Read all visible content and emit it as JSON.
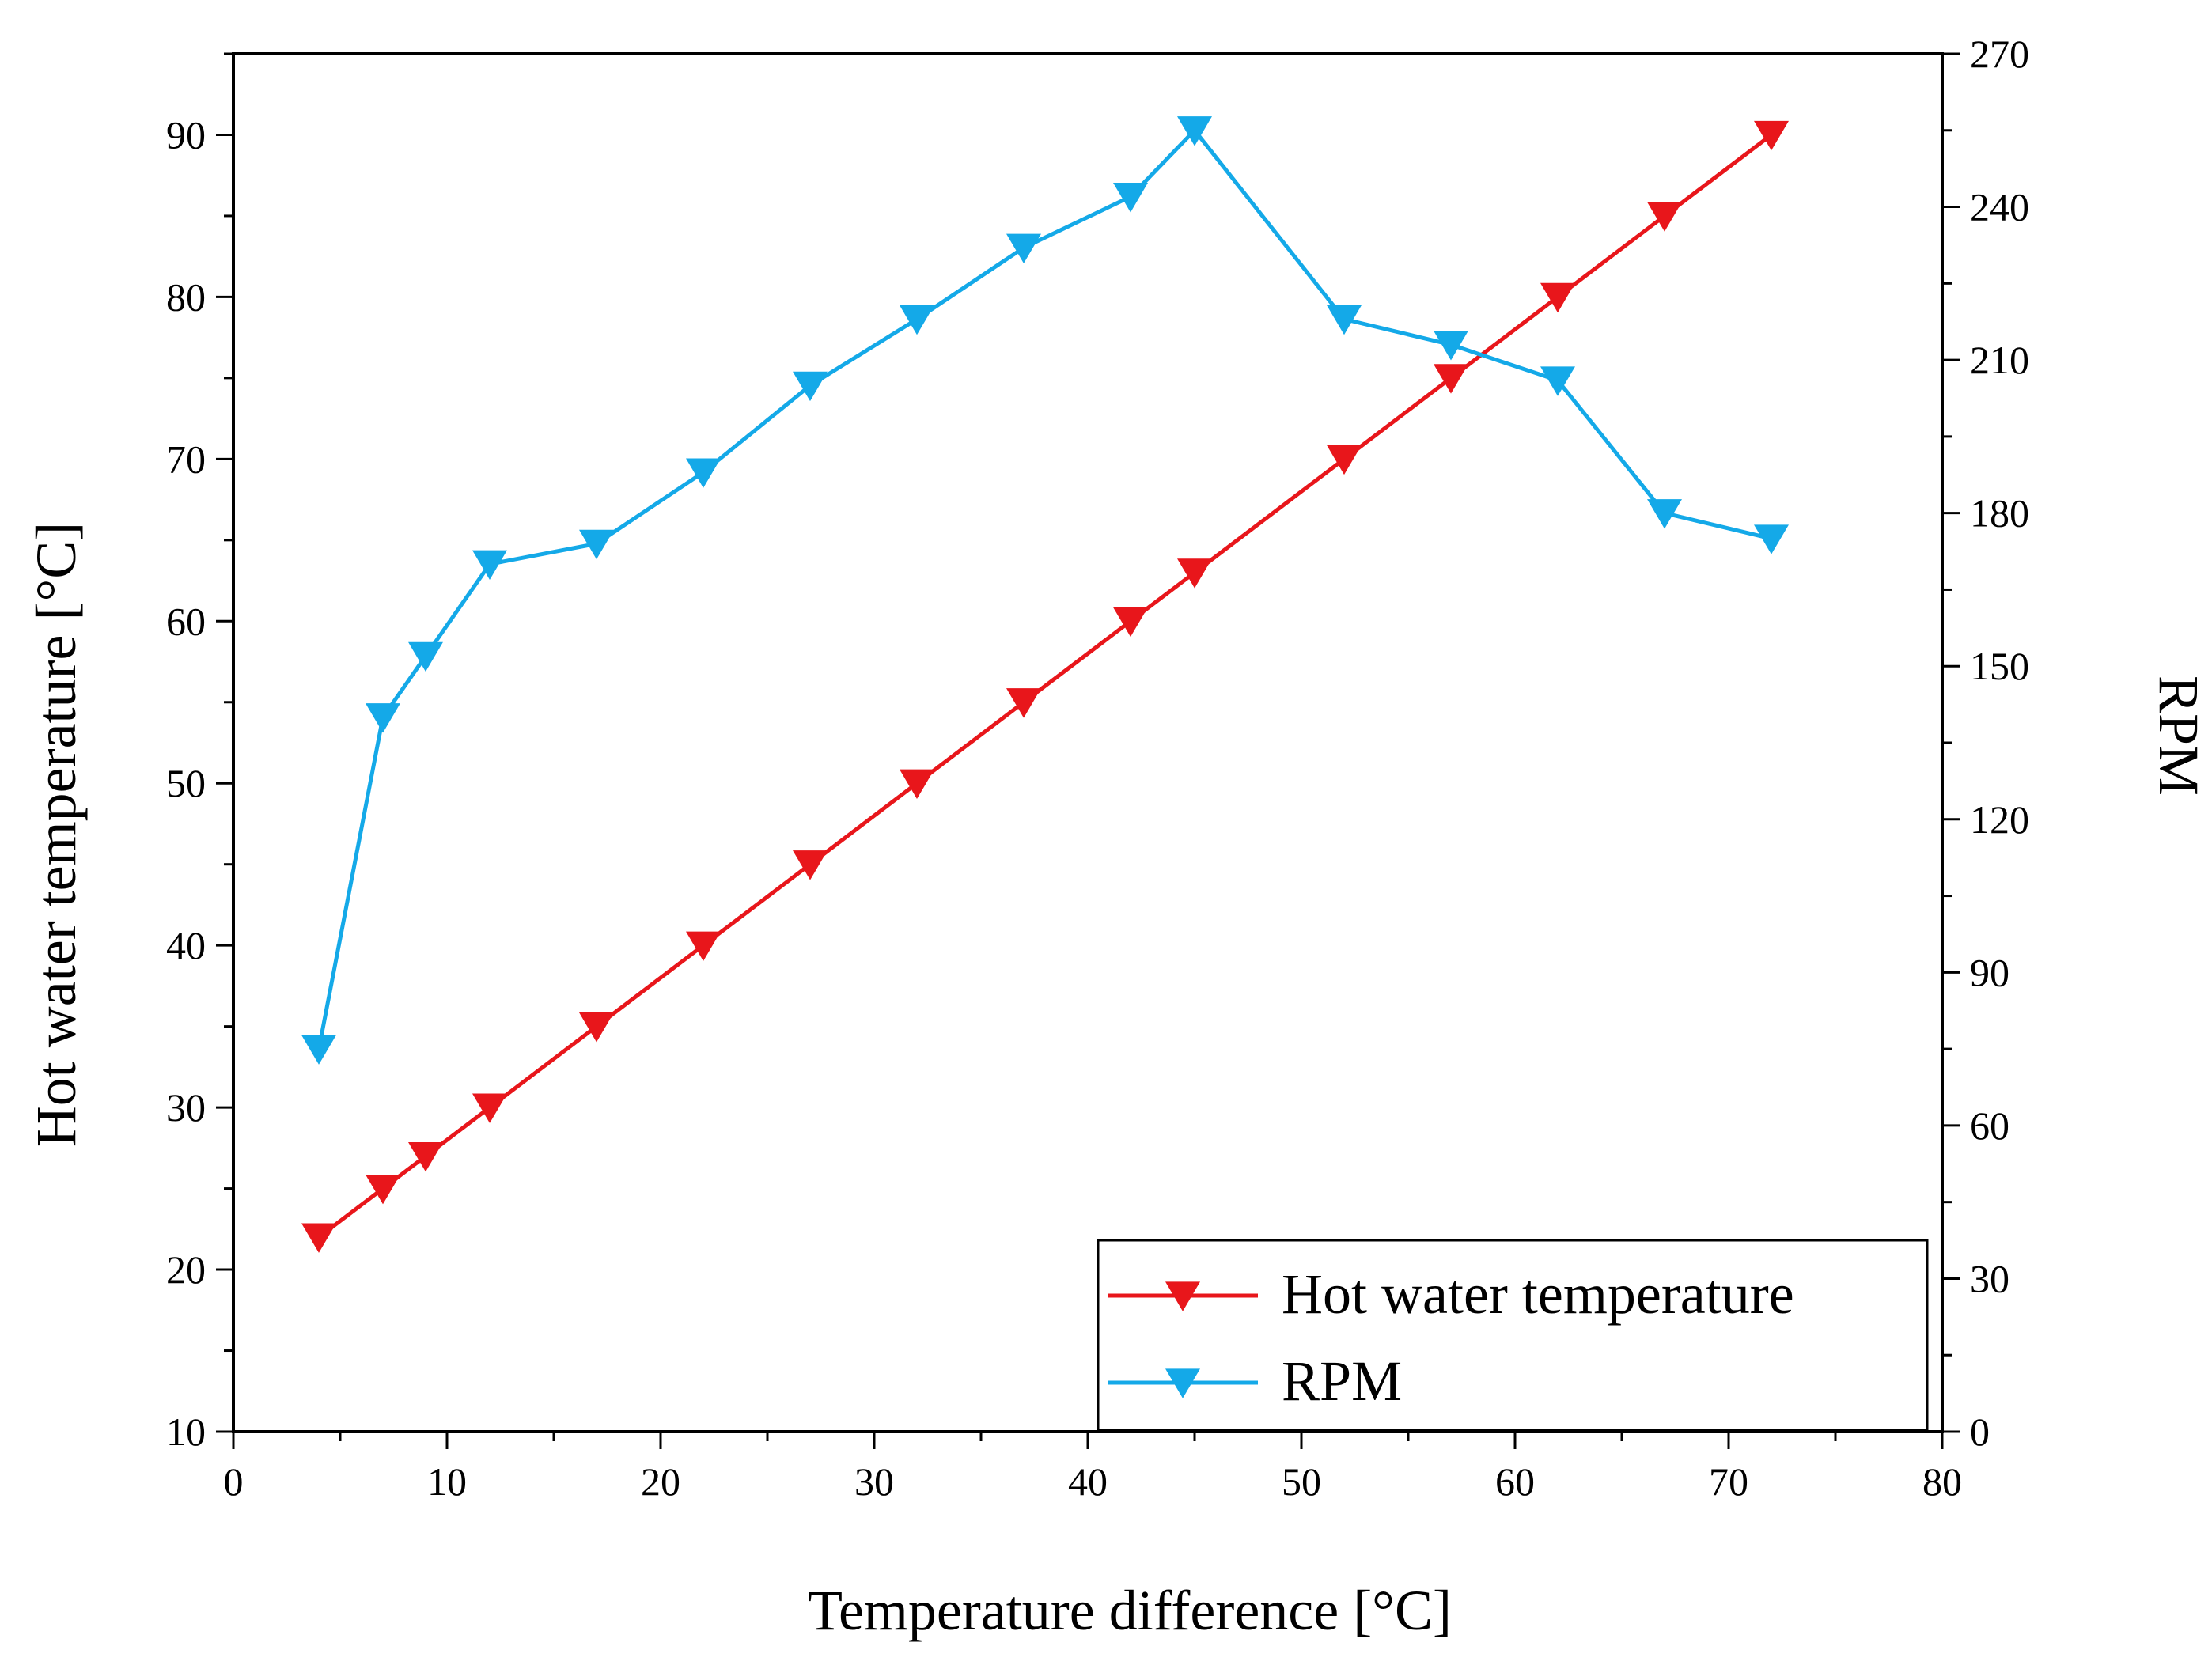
{
  "chart_data": {
    "type": "line",
    "xlabel": "Temperature difference [°C]",
    "ylabel_left": "Hot water temperature [°C]",
    "ylabel_right": "RPM",
    "xlim": [
      0,
      80
    ],
    "ylim_left": [
      10,
      95
    ],
    "ylim_right": [
      0,
      270
    ],
    "x_ticks": [
      "0",
      "10",
      "20",
      "30",
      "40",
      "50",
      "60",
      "70",
      "80"
    ],
    "y_left_ticks": [
      "10",
      "20",
      "30",
      "40",
      "50",
      "60",
      "70",
      "80",
      "90"
    ],
    "y_right_ticks": [
      "0",
      "30",
      "60",
      "90",
      "120",
      "150",
      "180",
      "210",
      "240",
      "270"
    ],
    "legend_position": "bottom-right",
    "series": [
      {
        "name": "Hot water temperature",
        "axis": "left",
        "color": "#e8161b",
        "marker": "triangle-down",
        "x": [
          4,
          7,
          9,
          12,
          17,
          22,
          27,
          32,
          37,
          42,
          45,
          52,
          57,
          62,
          67,
          72
        ],
        "y": [
          22,
          25,
          27,
          30,
          35,
          40,
          45,
          50,
          55,
          60,
          63,
          70,
          75,
          80,
          85,
          90
        ]
      },
      {
        "name": "RPM",
        "axis": "right",
        "color": "#14a9e8",
        "marker": "triangle-down",
        "x": [
          4,
          7,
          9,
          12,
          17,
          22,
          27,
          32,
          37,
          42,
          45,
          52,
          57,
          62,
          67,
          72
        ],
        "y": [
          75,
          140,
          152,
          170,
          174,
          188,
          205,
          218,
          232,
          242,
          255,
          218,
          213,
          206,
          180,
          175
        ]
      }
    ]
  }
}
